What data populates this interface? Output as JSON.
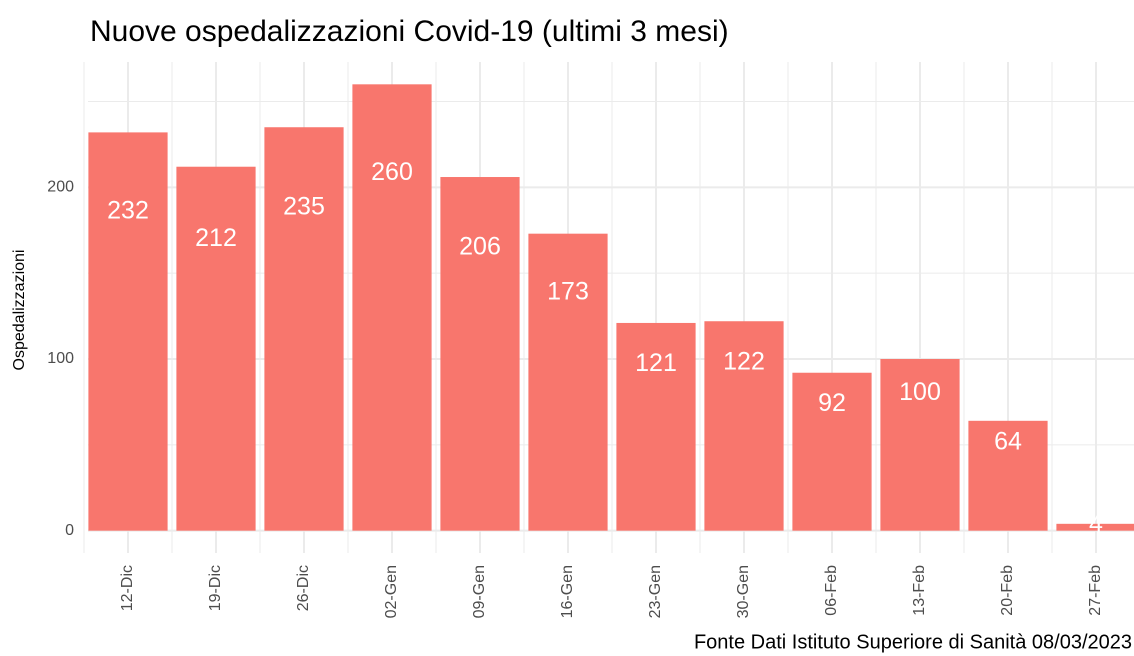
{
  "chart_data": {
    "type": "bar",
    "title": "Nuove ospedalizzazioni Covid-19 (ultimi 3 mesi)",
    "y_label": "Ospedalizzazioni",
    "caption": "Fonte Dati Istituto Superiore di Sanità 08/03/2023",
    "categories": [
      "12-Dic",
      "19-Dic",
      "26-Dic",
      "02-Gen",
      "09-Gen",
      "16-Gen",
      "23-Gen",
      "30-Gen",
      "06-Feb",
      "13-Feb",
      "20-Feb",
      "27-Feb"
    ],
    "values": [
      232,
      212,
      235,
      260,
      206,
      173,
      121,
      122,
      92,
      100,
      64,
      4
    ],
    "color": "#f8766d",
    "ylim": [
      -13,
      273
    ],
    "yticks": [
      0,
      100,
      200
    ],
    "grid": true
  }
}
